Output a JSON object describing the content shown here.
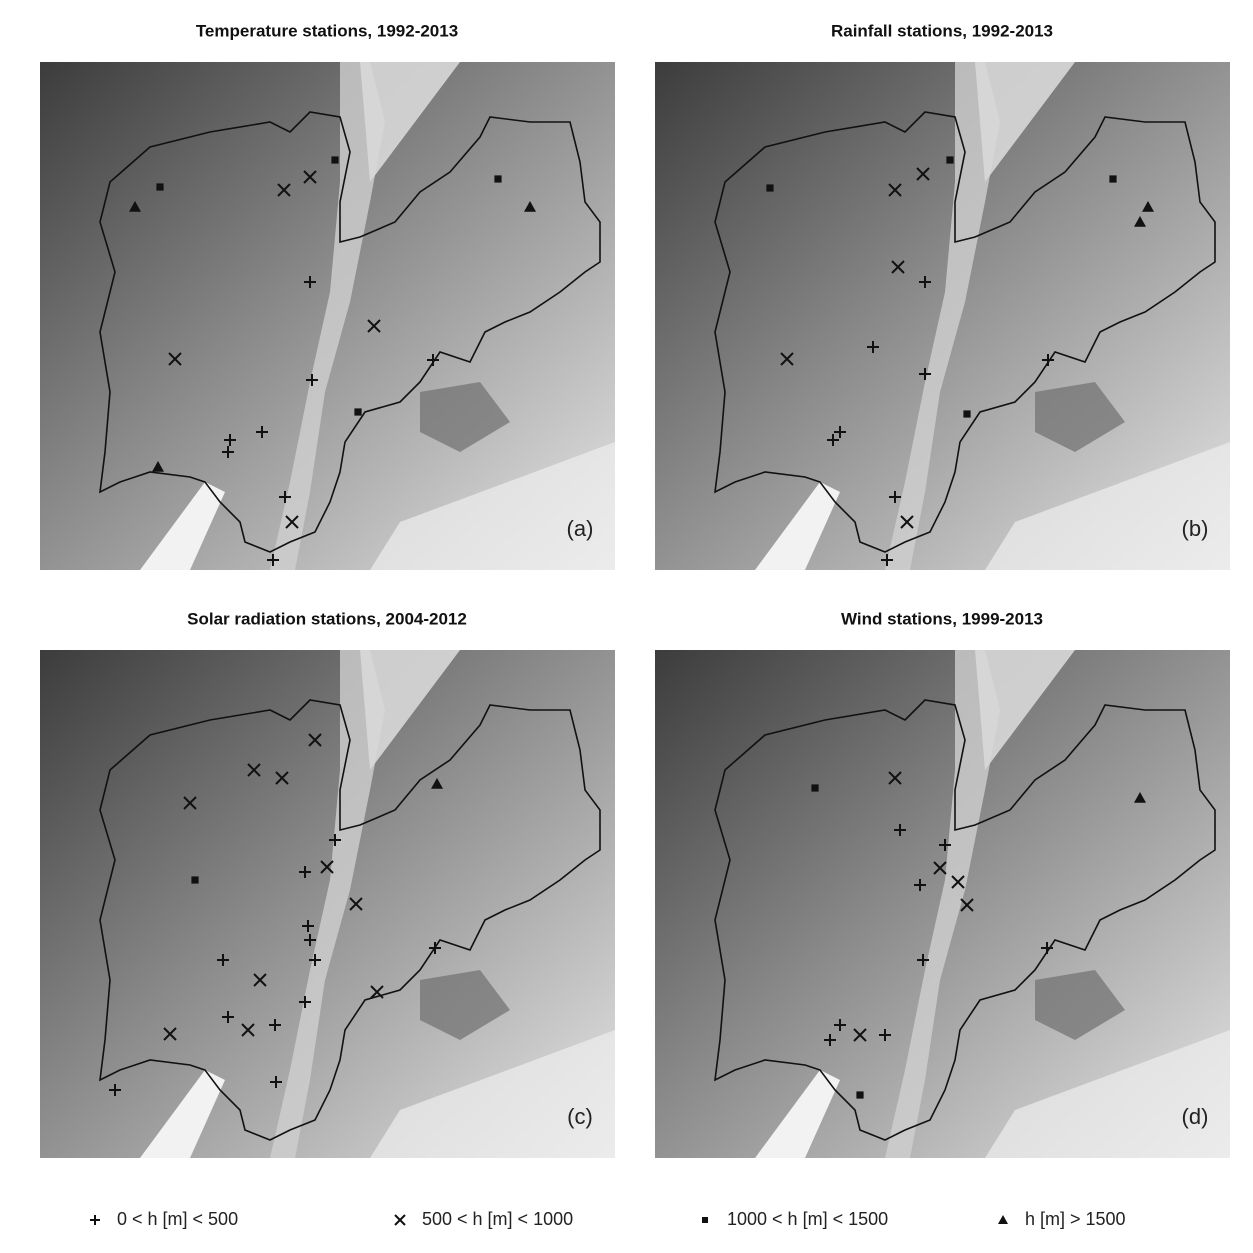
{
  "panels": [
    {
      "title": "Temperature stations, 1992-2013",
      "label": "(a)"
    },
    {
      "title": "Rainfall stations, 1992-2013",
      "label": "(b)"
    },
    {
      "title": "Solar radiation stations, 2004-2012",
      "label": "(c)"
    },
    {
      "title": "Wind stations, 1999-2013",
      "label": "(d)"
    }
  ],
  "legend": [
    "0 < h [m] < 500",
    "500 < h [m] < 1000",
    "1000 < h [m] < 1500",
    "h [m] > 1500"
  ]
}
